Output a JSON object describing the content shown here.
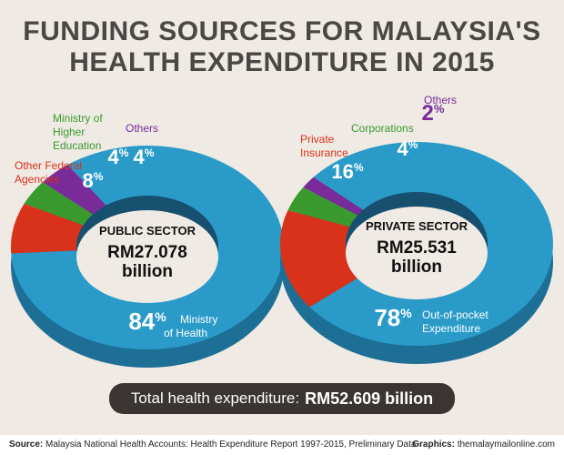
{
  "title_line1": "FUNDING SOURCES FOR MALAYSIA'S",
  "title_line2": "HEALTH EXPENDITURE IN 2015",
  "total_label": "Total health expenditure:",
  "total_value": "RM52.609 billion",
  "source_label": "Source:",
  "source_text": "Malaysia National Health Accounts: Health Expenditure Report 1997-2015, Preliminary Data",
  "graphics_label": "Graphics:",
  "graphics_text": "themalaymailonline.com",
  "colors": {
    "ring_main": "#2a9bc9",
    "ring_dark": "#1d6f96",
    "ring_inner": "#16506e",
    "red": "#d9321a",
    "green": "#3a9a2e",
    "purple": "#7a2b9a",
    "bar": "#3a3532"
  },
  "chart_data": [
    {
      "type": "pie",
      "center_lines": [
        "PUBLIC SECTOR",
        "RM27.078",
        "billion"
      ],
      "slices": [
        {
          "label": "Ministry of Health",
          "value": 84,
          "pct_text": "84",
          "color": "#2a9bc9"
        },
        {
          "label": "Other Federal Agencies",
          "value": 8,
          "pct_text": "8",
          "color": "#d9321a"
        },
        {
          "label": "Ministry of Higher Education",
          "value": 4,
          "pct_text": "4",
          "color": "#3a9a2e"
        },
        {
          "label": "Others",
          "value": 4,
          "pct_text": "4",
          "color": "#7a2b9a"
        }
      ]
    },
    {
      "type": "pie",
      "center_lines": [
        "PRIVATE SECTOR",
        "RM25.531",
        "billion"
      ],
      "slices": [
        {
          "label": "Out-of-pocket Expenditure",
          "value": 78,
          "pct_text": "78",
          "color": "#2a9bc9"
        },
        {
          "label": "Private Insurance",
          "value": 16,
          "pct_text": "16",
          "color": "#d9321a"
        },
        {
          "label": "Corporations",
          "value": 4,
          "pct_text": "4",
          "color": "#3a9a2e"
        },
        {
          "label": "Others",
          "value": 2,
          "pct_text": "2",
          "color": "#7a2b9a"
        }
      ]
    }
  ]
}
